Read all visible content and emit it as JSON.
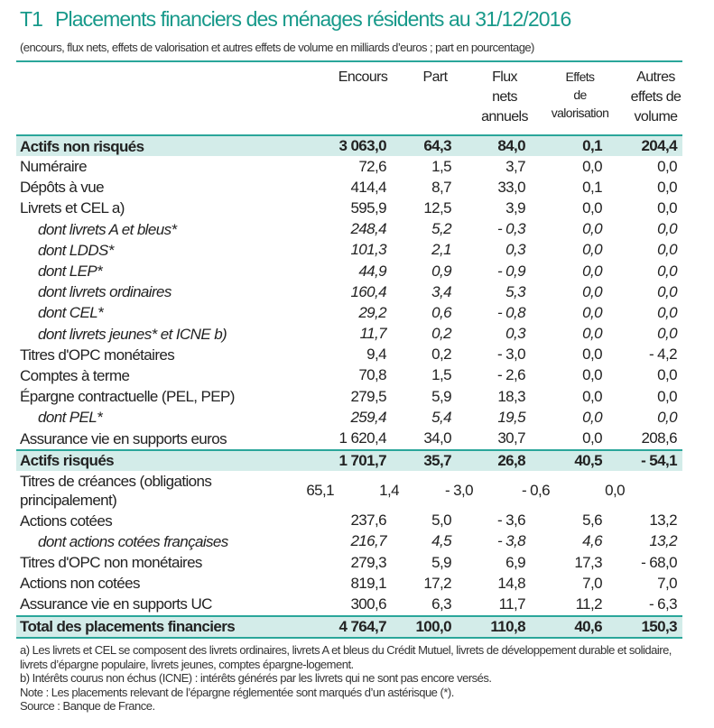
{
  "title": {
    "number": "T1",
    "text": "Placements financiers des ménages résidents au 31/12/2016"
  },
  "subtitle": "(encours, flux nets, effets de valorisation et autres effets de volume en milliards d’euros ; part en pourcentage)",
  "columns": [
    {
      "lines": [
        "Encours"
      ]
    },
    {
      "lines": [
        "Part"
      ]
    },
    {
      "lines": [
        "Flux",
        "nets",
        "annuels"
      ]
    },
    {
      "lines": [
        "Effets",
        "de",
        "valorisation"
      ]
    },
    {
      "lines": [
        "Autres",
        "effets de",
        "volume"
      ]
    }
  ],
  "rows": [
    {
      "type": "band",
      "label": "Actifs non risqués",
      "values": [
        "3 063,0",
        "64,3",
        "84,0",
        "0,1",
        "204,4"
      ]
    },
    {
      "type": "normal",
      "label": "Numéraire",
      "values": [
        "72,6",
        "1,5",
        "3,7",
        "0,0",
        "0,0"
      ]
    },
    {
      "type": "normal",
      "label": "Dépôts à vue",
      "values": [
        "414,4",
        "8,7",
        "33,0",
        "0,1",
        "0,0"
      ]
    },
    {
      "type": "normal",
      "label": "Livrets et CEL a)",
      "values": [
        "595,9",
        "12,5",
        "3,9",
        "0,0",
        "0,0"
      ]
    },
    {
      "type": "italic",
      "label": "dont livrets A et bleus*",
      "values": [
        "248,4",
        "5,2",
        "- 0,3",
        "0,0",
        "0,0"
      ]
    },
    {
      "type": "italic",
      "label": "dont LDDS*",
      "values": [
        "101,3",
        "2,1",
        "0,3",
        "0,0",
        "0,0"
      ]
    },
    {
      "type": "italic",
      "label": "dont LEP*",
      "values": [
        "44,9",
        "0,9",
        "- 0,9",
        "0,0",
        "0,0"
      ]
    },
    {
      "type": "italic",
      "label": "dont livrets ordinaires",
      "values": [
        "160,4",
        "3,4",
        "5,3",
        "0,0",
        "0,0"
      ]
    },
    {
      "type": "italic",
      "label": "dont CEL*",
      "values": [
        "29,2",
        "0,6",
        "- 0,8",
        "0,0",
        "0,0"
      ]
    },
    {
      "type": "italic",
      "label": "dont livrets jeunes* et ICNE b)",
      "values": [
        "11,7",
        "0,2",
        "0,3",
        "0,0",
        "0,0"
      ]
    },
    {
      "type": "normal",
      "label": "Titres d'OPC monétaires",
      "values": [
        "9,4",
        "0,2",
        "- 3,0",
        "0,0",
        "- 4,2"
      ]
    },
    {
      "type": "normal",
      "label": "Comptes à terme",
      "values": [
        "70,8",
        "1,5",
        "- 2,6",
        "0,0",
        "0,0"
      ]
    },
    {
      "type": "normal",
      "label": "Épargne contractuelle (PEL, PEP)",
      "values": [
        "279,5",
        "5,9",
        "18,3",
        "0,0",
        "0,0"
      ]
    },
    {
      "type": "italic",
      "label": "dont PEL*",
      "values": [
        "259,4",
        "5,4",
        "19,5",
        "0,0",
        "0,0"
      ]
    },
    {
      "type": "normal",
      "label": "Assurance vie en supports euros",
      "values": [
        "1 620,4",
        "34,0",
        "30,7",
        "0,0",
        "208,6"
      ]
    },
    {
      "type": "band",
      "label": "Actifs risqués",
      "values": [
        "1 701,7",
        "35,7",
        "26,8",
        "40,5",
        "- 54,1"
      ]
    },
    {
      "type": "two",
      "label": "Titres de créances (obligations principalement)",
      "values": [
        "65,1",
        "1,4",
        "- 3,0",
        "- 0,6",
        "0,0"
      ]
    },
    {
      "type": "normal",
      "label": "Actions cotées",
      "values": [
        "237,6",
        "5,0",
        "- 3,6",
        "5,6",
        "13,2"
      ]
    },
    {
      "type": "italic",
      "label": "dont actions cotées françaises",
      "values": [
        "216,7",
        "4,5",
        "- 3,8",
        "4,6",
        "13,2"
      ]
    },
    {
      "type": "normal",
      "label": "Titres d'OPC non monétaires",
      "values": [
        "279,3",
        "5,9",
        "6,9",
        "17,3",
        "- 68,0"
      ]
    },
    {
      "type": "normal",
      "label": "Actions non cotées",
      "values": [
        "819,1",
        "17,2",
        "14,8",
        "7,0",
        "7,0"
      ]
    },
    {
      "type": "normal",
      "label": "Assurance vie en supports UC",
      "values": [
        "300,6",
        "6,3",
        "11,7",
        "11,2",
        "- 6,3"
      ]
    },
    {
      "type": "band",
      "label": "Total des placements financiers",
      "values": [
        "4 764,7",
        "100,0",
        "110,8",
        "40,6",
        "150,3"
      ]
    }
  ],
  "notes": [
    "a) Les livrets et CEL se composent des livrets ordinaires, livrets A et bleus du Crédit Mutuel, livrets de développement durable et solidaire, livrets d’épargne populaire, livrets jeunes, comptes épargne-logement.",
    "b) Intérêts courus non échus (ICNE) : intérêts générés par les livrets qui ne sont pas encore versés.",
    "Note : Les placements relevant de l’épargne réglementée sont marqués d’un astérisque (*).",
    "Source : Banque de France."
  ]
}
